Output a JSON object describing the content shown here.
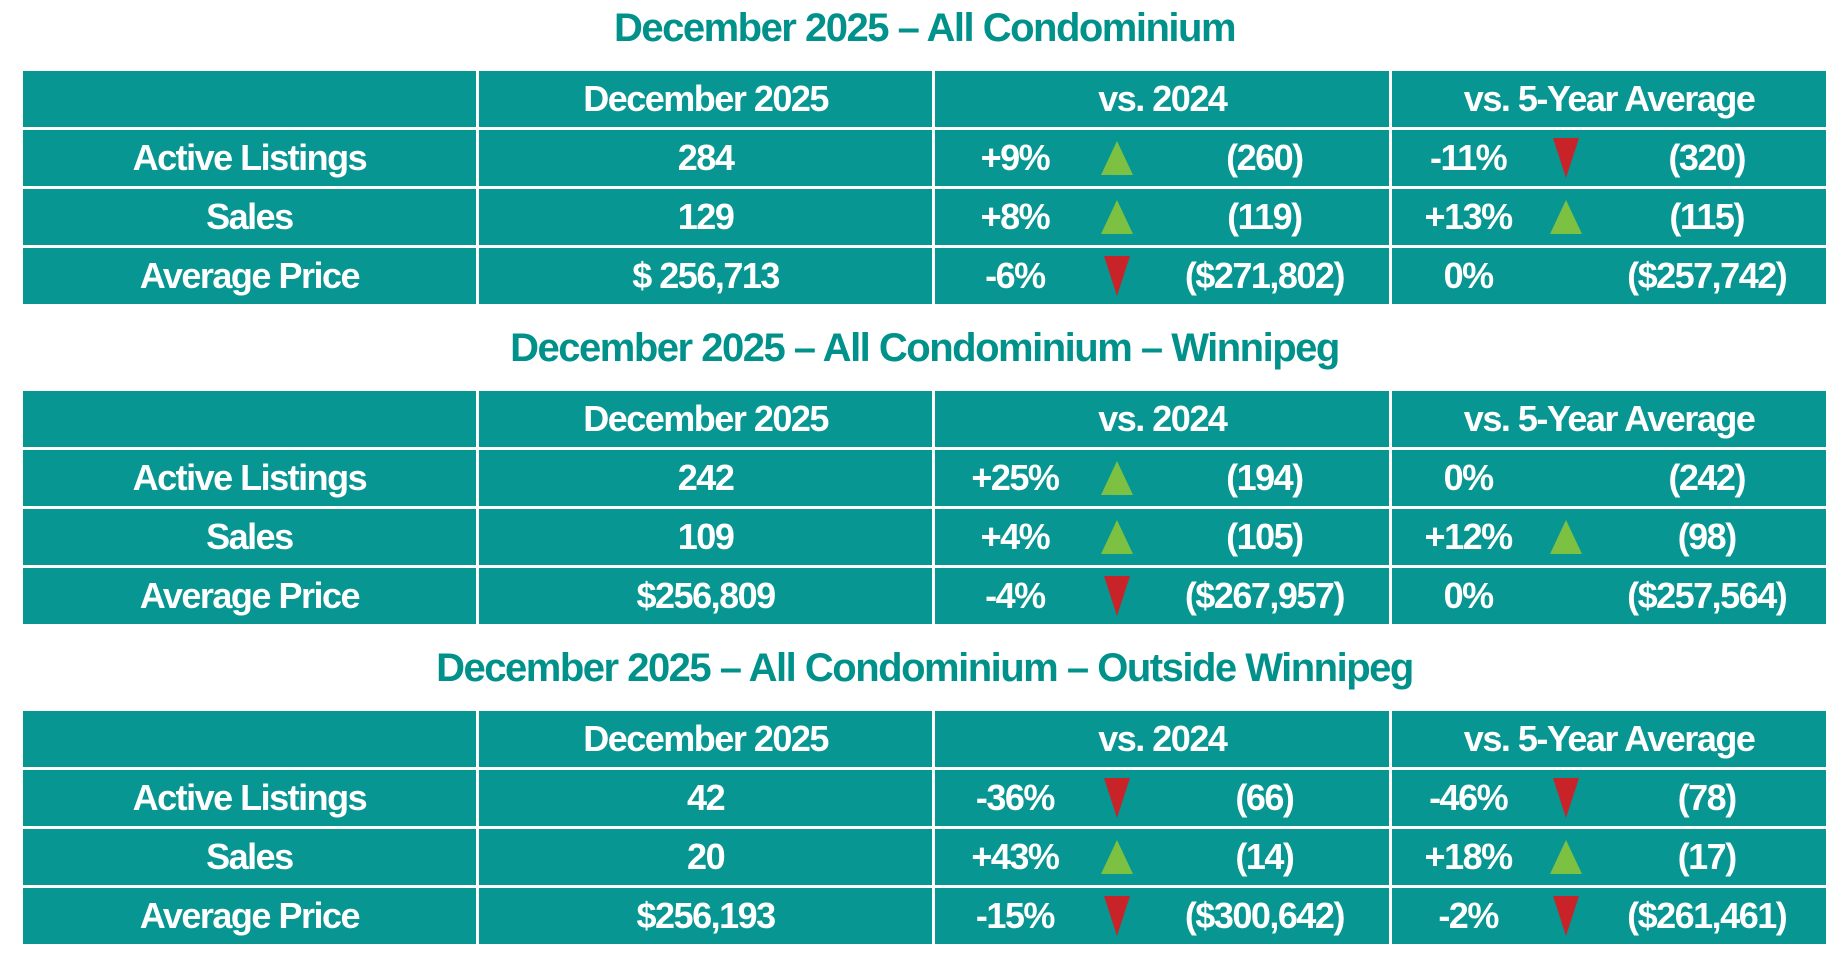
{
  "colors": {
    "table_background": "#079691",
    "title_text": "#00918B",
    "cell_text": "#FFFFFF",
    "up_arrow_green": "#7DC142",
    "down_arrow_red": "#C9232A",
    "grid_lines": "#FFFFFF",
    "page_background": "#FFFFFF"
  },
  "tables": [
    {
      "title": "December 2025 – All Condominium",
      "columns": {
        "metric": "",
        "current": "December 2025",
        "vs_2024": "vs. 2024",
        "vs_5yr": "vs. 5-Year Average"
      },
      "rows": [
        {
          "label": "Active Listings",
          "current": "284",
          "vs2024": {
            "pct": "+9%",
            "dir": "up",
            "value": "(260)"
          },
          "vs5yr": {
            "pct": "-11%",
            "dir": "down",
            "value": "(320)"
          }
        },
        {
          "label": "Sales",
          "current": "129",
          "vs2024": {
            "pct": "+8%",
            "dir": "up",
            "value": "(119)"
          },
          "vs5yr": {
            "pct": "+13%",
            "dir": "up",
            "value": "(115)"
          }
        },
        {
          "label": "Average Price",
          "current": "$ 256,713",
          "vs2024": {
            "pct": "-6%",
            "dir": "down",
            "value": "($271,802)"
          },
          "vs5yr": {
            "pct": "0%",
            "dir": "none",
            "value": "($257,742)"
          }
        }
      ]
    },
    {
      "title": "December 2025 – All Condominium – Winnipeg",
      "columns": {
        "metric": "",
        "current": "December 2025",
        "vs_2024": "vs. 2024",
        "vs_5yr": "vs. 5-Year Average"
      },
      "rows": [
        {
          "label": "Active Listings",
          "current": "242",
          "vs2024": {
            "pct": "+25%",
            "dir": "up",
            "value": "(194)"
          },
          "vs5yr": {
            "pct": "0%",
            "dir": "none",
            "value": "(242)"
          }
        },
        {
          "label": "Sales",
          "current": "109",
          "vs2024": {
            "pct": "+4%",
            "dir": "up",
            "value": "(105)"
          },
          "vs5yr": {
            "pct": "+12%",
            "dir": "up",
            "value": "(98)"
          }
        },
        {
          "label": "Average Price",
          "current": "$256,809",
          "vs2024": {
            "pct": "-4%",
            "dir": "down",
            "value": "($267,957)"
          },
          "vs5yr": {
            "pct": "0%",
            "dir": "none",
            "value": "($257,564)"
          }
        }
      ]
    },
    {
      "title": "December 2025 – All Condominium – Outside Winnipeg",
      "columns": {
        "metric": "",
        "current": "December 2025",
        "vs_2024": "vs. 2024",
        "vs_5yr": "vs. 5-Year Average"
      },
      "rows": [
        {
          "label": "Active Listings",
          "current": "42",
          "vs2024": {
            "pct": "-36%",
            "dir": "down",
            "value": "(66)"
          },
          "vs5yr": {
            "pct": "-46%",
            "dir": "down",
            "value": "(78)"
          }
        },
        {
          "label": "Sales",
          "current": "20",
          "vs2024": {
            "pct": "+43%",
            "dir": "up",
            "value": "(14)"
          },
          "vs5yr": {
            "pct": "+18%",
            "dir": "up",
            "value": "(17)"
          }
        },
        {
          "label": "Average Price",
          "current": "$256,193",
          "vs2024": {
            "pct": "-15%",
            "dir": "down",
            "value": "($300,642)"
          },
          "vs5yr": {
            "pct": "-2%",
            "dir": "down",
            "value": "($261,461)"
          }
        }
      ]
    }
  ]
}
